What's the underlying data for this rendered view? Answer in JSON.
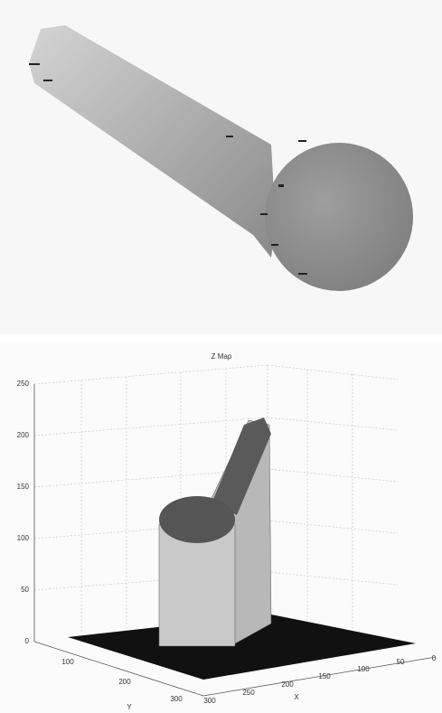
{
  "plot": {
    "title": "Z Map",
    "z_ticks": [
      "0",
      "50",
      "100",
      "150",
      "200",
      "250"
    ],
    "x_ticks": [
      "300",
      "250",
      "200",
      "150",
      "100",
      "50",
      "0"
    ],
    "y_ticks": [
      "100",
      "200",
      "300"
    ],
    "x_label": "X",
    "y_label": "Y"
  }
}
